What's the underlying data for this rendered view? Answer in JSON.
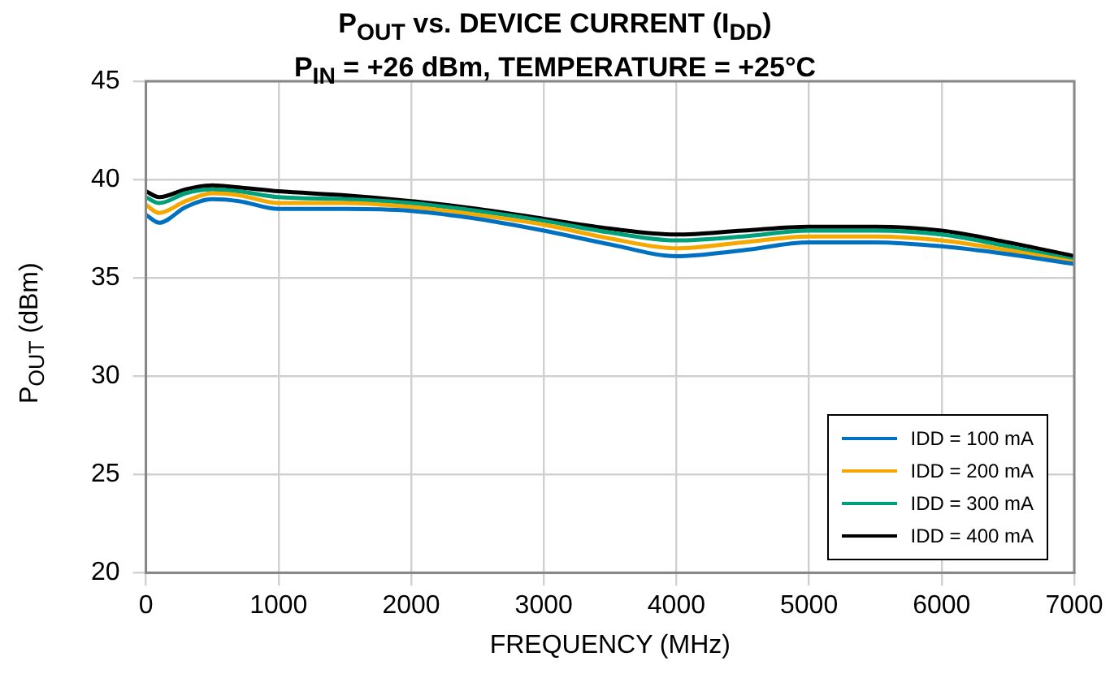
{
  "chart_data": {
    "type": "line",
    "title": "P$_{OUT}$ vs. DEVICE CURRENT (I$_{DD}$)",
    "subtitle": "P$_{IN}$ = +26 dBm, TEMPERATURE = +25°C",
    "xlabel": "FREQUENCY (MHz)",
    "ylabel": "P$_{OUT}$ (dBm)",
    "x": [
      0,
      100,
      300,
      500,
      700,
      1000,
      1500,
      2000,
      2500,
      3000,
      3500,
      4000,
      4500,
      5000,
      5500,
      6000,
      6500,
      7000
    ],
    "series": [
      {
        "name": "IDD = 100 mA",
        "color": "#0070c0",
        "values": [
          38.2,
          37.8,
          38.6,
          39.0,
          38.9,
          38.5,
          38.5,
          38.4,
          38.0,
          37.4,
          36.7,
          36.1,
          36.4,
          36.8,
          36.8,
          36.6,
          36.2,
          35.7
        ]
      },
      {
        "name": "IDD = 200 mA",
        "color": "#f5a800",
        "values": [
          38.7,
          38.3,
          38.9,
          39.3,
          39.2,
          38.8,
          38.8,
          38.6,
          38.2,
          37.7,
          37.0,
          36.5,
          36.8,
          37.1,
          37.1,
          36.9,
          36.4,
          35.8
        ]
      },
      {
        "name": "IDD = 300 mA",
        "color": "#00a07a",
        "values": [
          39.1,
          38.8,
          39.3,
          39.5,
          39.4,
          39.1,
          39.0,
          38.8,
          38.4,
          37.9,
          37.3,
          36.9,
          37.1,
          37.4,
          37.4,
          37.2,
          36.6,
          35.9
        ]
      },
      {
        "name": "IDD = 400 mA",
        "color": "#000000",
        "values": [
          39.4,
          39.1,
          39.5,
          39.7,
          39.6,
          39.4,
          39.2,
          38.9,
          38.5,
          38.0,
          37.5,
          37.2,
          37.4,
          37.6,
          37.6,
          37.4,
          36.8,
          36.1
        ]
      }
    ],
    "xlim": [
      0,
      7000
    ],
    "xticks": [
      0,
      1000,
      2000,
      3000,
      4000,
      5000,
      6000,
      7000
    ],
    "ylim": [
      20,
      45
    ],
    "yticks": [
      20,
      25,
      30,
      35,
      40,
      45
    ],
    "grid": true,
    "legend": "bottom right",
    "marker": "none",
    "line_style": "solid"
  }
}
